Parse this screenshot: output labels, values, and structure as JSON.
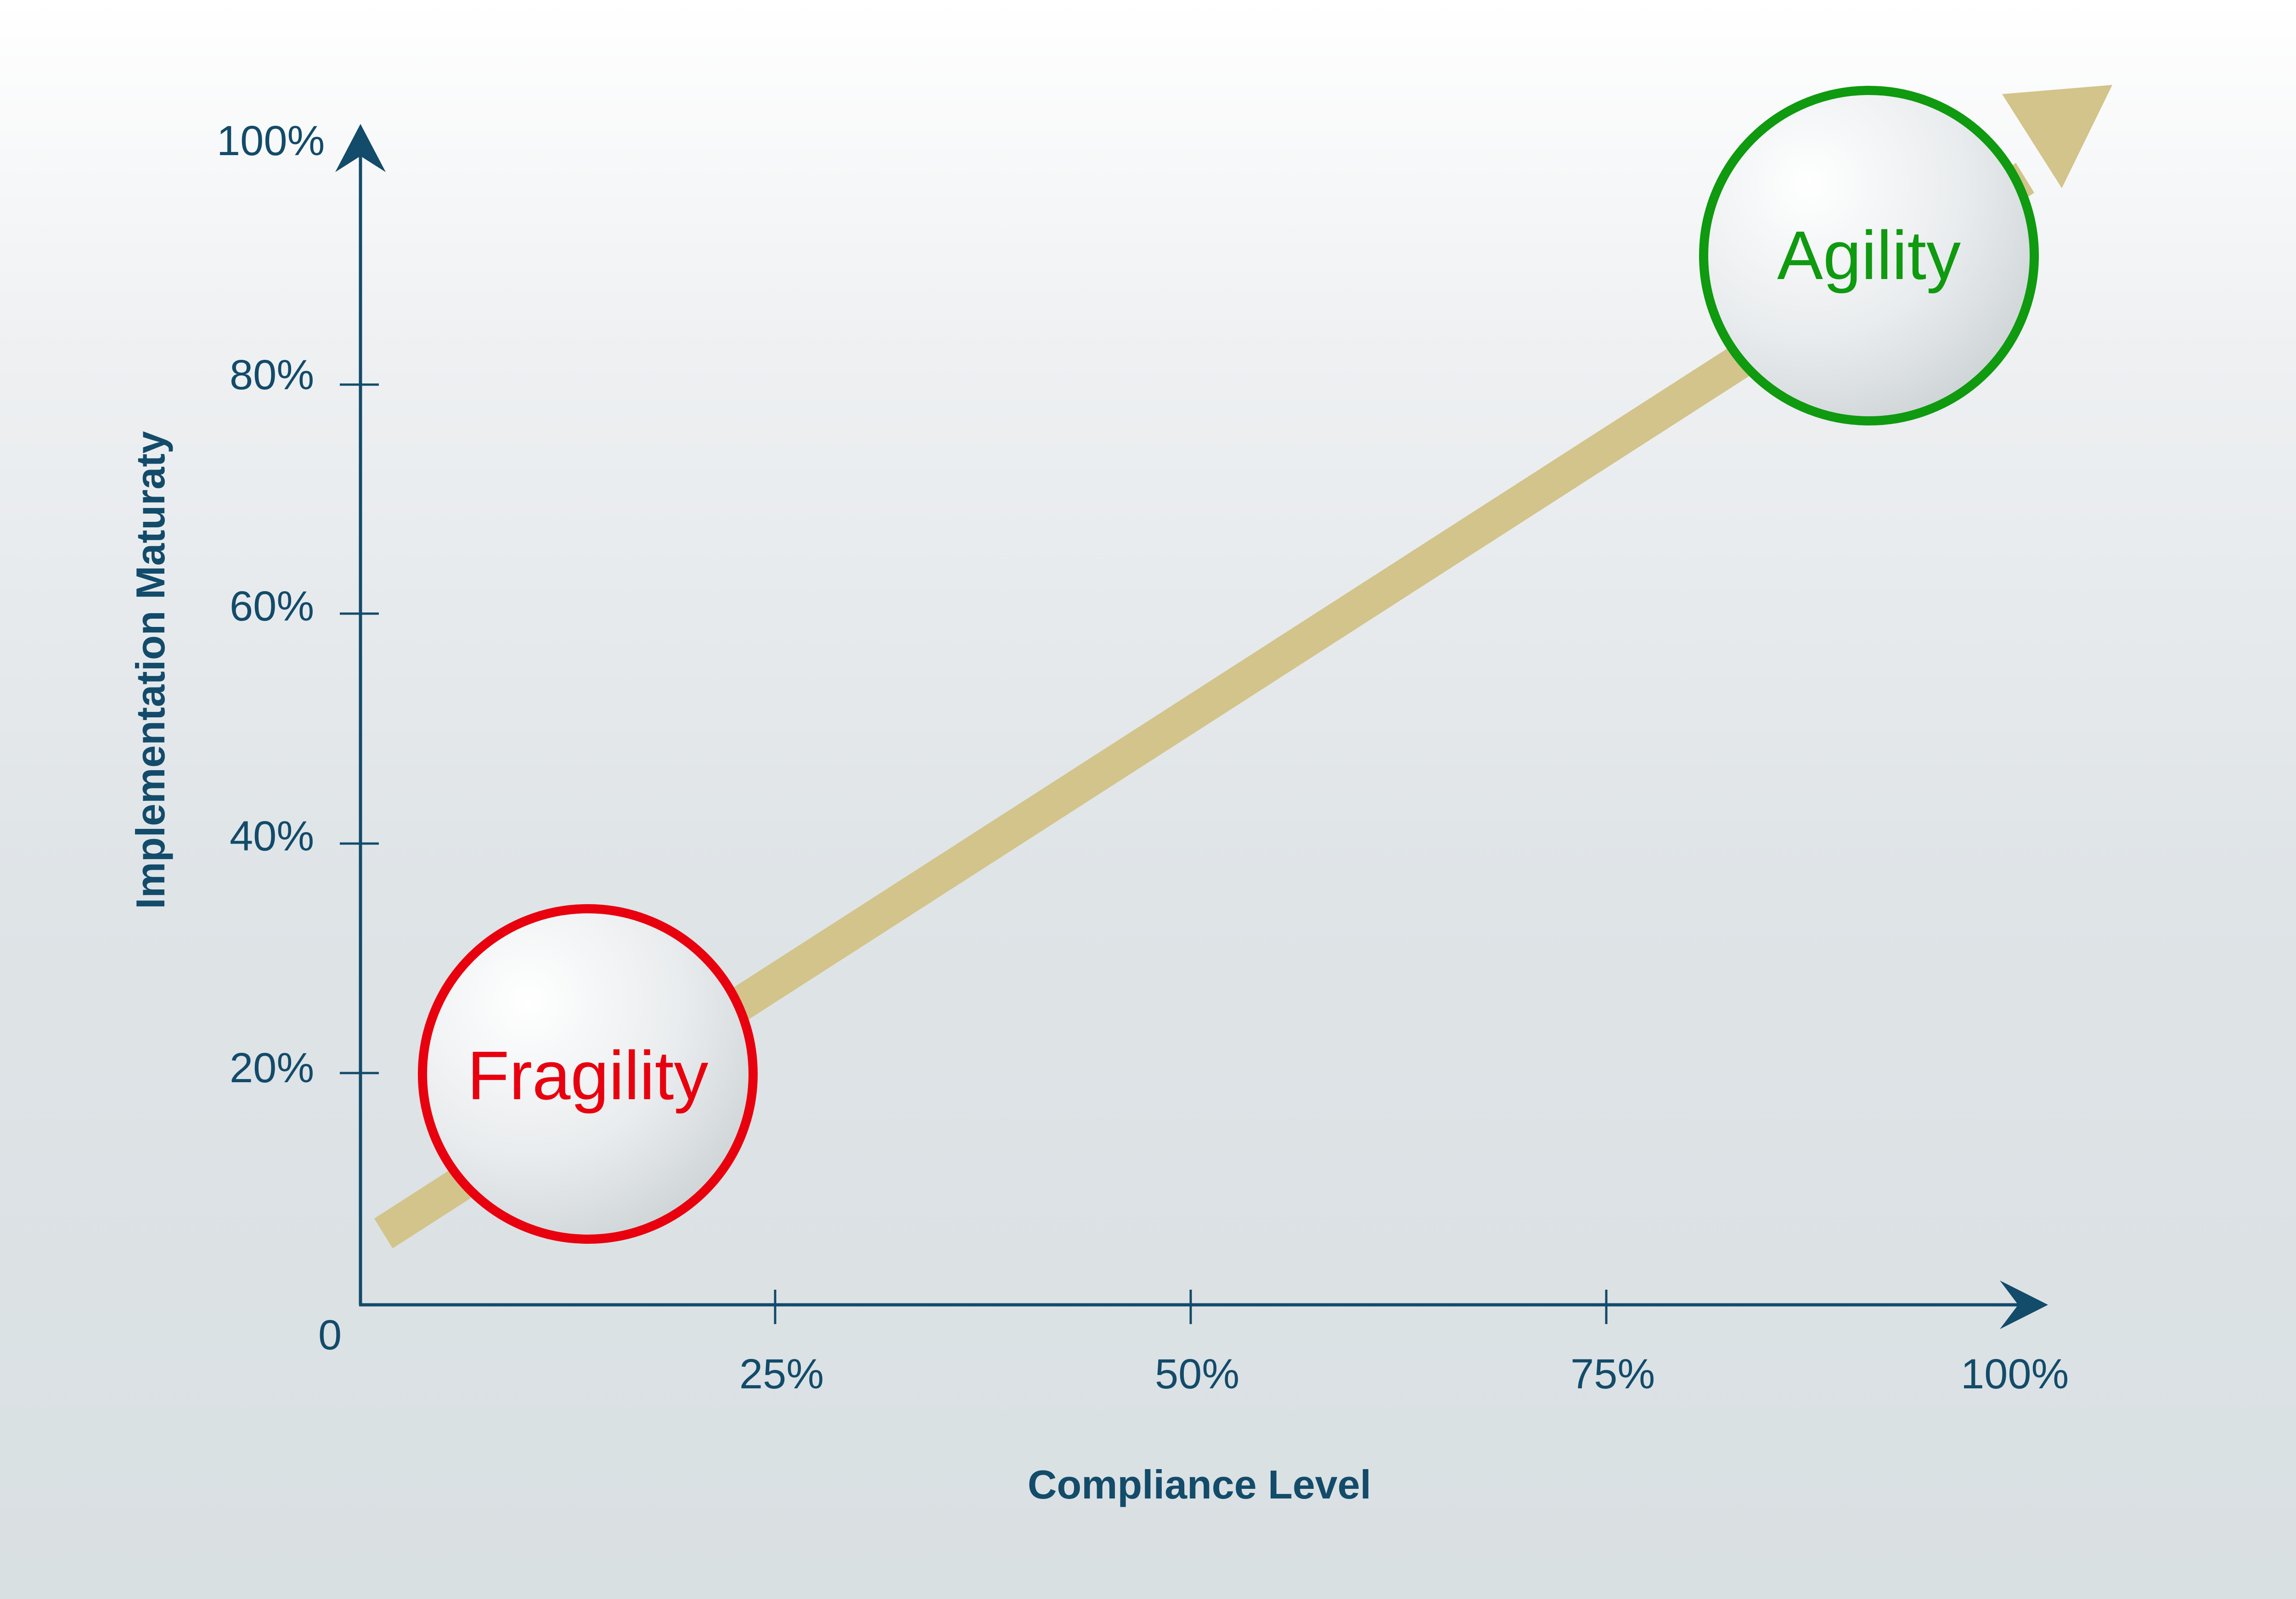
{
  "diagram": {
    "xlabel": "Compliance Level",
    "ylabel": "Implementation Maturaty",
    "origin_label": "0",
    "x_ticks": [
      "25%",
      "50%",
      "75%",
      "100%"
    ],
    "y_ticks": [
      "20%",
      "40%",
      "60%",
      "80%",
      "100%"
    ],
    "nodes": [
      {
        "label": "Fragility",
        "color": "#e8000e"
      },
      {
        "label": "Agility",
        "color": "#0f9a10"
      }
    ],
    "trend_arrow_color": "#d2c48a",
    "axis_color": "#134b6a"
  }
}
